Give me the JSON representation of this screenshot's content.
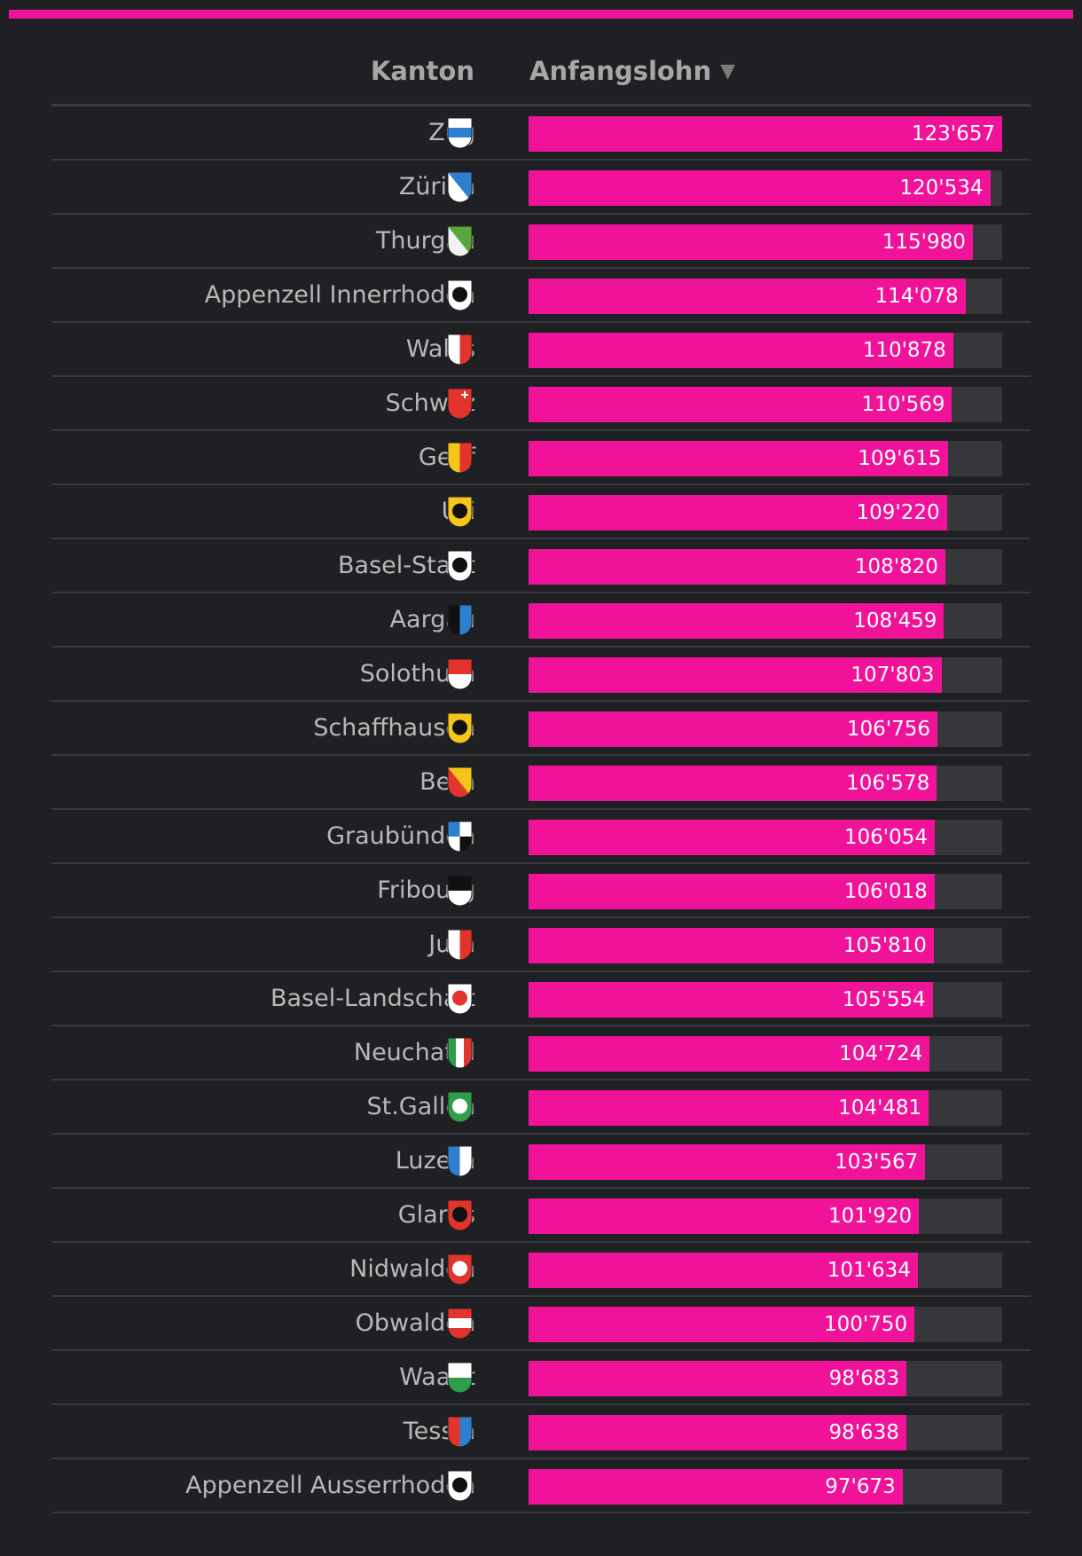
{
  "chart_data": {
    "type": "bar",
    "orientation": "horizontal",
    "headers": {
      "category": "Kanton",
      "value": "Anfangslohn",
      "sort_icon": "sort-desc-icon"
    },
    "max_value": 123657,
    "colors": {
      "bar": "#f0139a",
      "track": "#36373b",
      "background": "#1f2023"
    },
    "rows": [
      {
        "name": "Zug",
        "value": 123657,
        "label": "123'657",
        "shield": "zug-shield-icon"
      },
      {
        "name": "Zürich",
        "value": 120534,
        "label": "120'534",
        "shield": "zurich-shield-icon"
      },
      {
        "name": "Thurgau",
        "value": 115980,
        "label": "115'980",
        "shield": "thurgau-shield-icon"
      },
      {
        "name": "Appenzell Innerrhoden",
        "value": 114078,
        "label": "114'078",
        "shield": "appenzell-innerrhoden-shield-icon"
      },
      {
        "name": "Wallis",
        "value": 110878,
        "label": "110'878",
        "shield": "wallis-shield-icon"
      },
      {
        "name": "Schwyz",
        "value": 110569,
        "label": "110'569",
        "shield": "schwyz-shield-icon"
      },
      {
        "name": "Genf",
        "value": 109615,
        "label": "109'615",
        "shield": "genf-shield-icon"
      },
      {
        "name": "Uri",
        "value": 109220,
        "label": "109'220",
        "shield": "uri-shield-icon"
      },
      {
        "name": "Basel-Stadt",
        "value": 108820,
        "label": "108'820",
        "shield": "basel-stadt-shield-icon"
      },
      {
        "name": "Aargau",
        "value": 108459,
        "label": "108'459",
        "shield": "aargau-shield-icon"
      },
      {
        "name": "Solothurn",
        "value": 107803,
        "label": "107'803",
        "shield": "solothurn-shield-icon"
      },
      {
        "name": "Schaffhausen",
        "value": 106756,
        "label": "106'756",
        "shield": "schaffhausen-shield-icon"
      },
      {
        "name": "Bern",
        "value": 106578,
        "label": "106'578",
        "shield": "bern-shield-icon"
      },
      {
        "name": "Graubünden",
        "value": 106054,
        "label": "106'054",
        "shield": "graubuenden-shield-icon"
      },
      {
        "name": "Fribourg",
        "value": 106018,
        "label": "106'018",
        "shield": "fribourg-shield-icon"
      },
      {
        "name": "Jura",
        "value": 105810,
        "label": "105'810",
        "shield": "jura-shield-icon"
      },
      {
        "name": "Basel-Landschaft",
        "value": 105554,
        "label": "105'554",
        "shield": "basel-landschaft-shield-icon"
      },
      {
        "name": "Neuchatel",
        "value": 104724,
        "label": "104'724",
        "shield": "neuchatel-shield-icon"
      },
      {
        "name": "St.Gallen",
        "value": 104481,
        "label": "104'481",
        "shield": "st-gallen-shield-icon"
      },
      {
        "name": "Luzern",
        "value": 103567,
        "label": "103'567",
        "shield": "luzern-shield-icon"
      },
      {
        "name": "Glarus",
        "value": 101920,
        "label": "101'920",
        "shield": "glarus-shield-icon"
      },
      {
        "name": "Nidwalden",
        "value": 101634,
        "label": "101'634",
        "shield": "nidwalden-shield-icon"
      },
      {
        "name": "Obwalden",
        "value": 100750,
        "label": "100'750",
        "shield": "obwalden-shield-icon"
      },
      {
        "name": "Waadt",
        "value": 98683,
        "label": "98'683",
        "shield": "waadt-shield-icon"
      },
      {
        "name": "Tessin",
        "value": 98638,
        "label": "98'638",
        "shield": "tessin-shield-icon"
      },
      {
        "name": "Appenzell Ausserrhoden",
        "value": 97673,
        "label": "97'673",
        "shield": "appenzell-ausserrhoden-shield-icon"
      }
    ]
  }
}
